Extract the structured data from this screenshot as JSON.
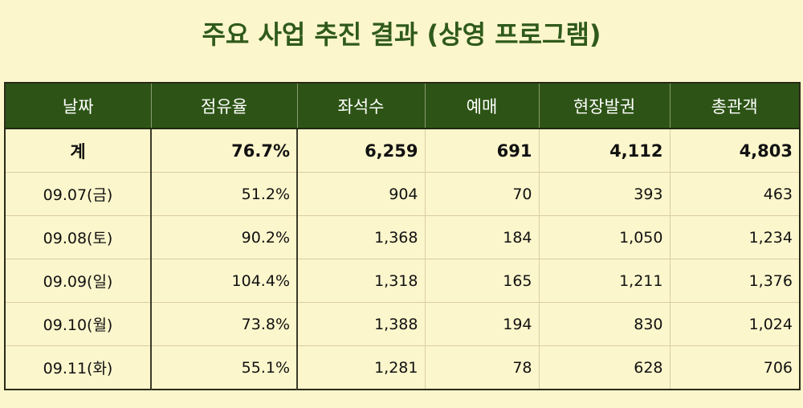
{
  "header": {
    "title": "주요 사업 추진 결과 (상영 프로그램)"
  },
  "table": {
    "columns": [
      "날짜",
      "점유율",
      "좌석수",
      "예매",
      "현장발권",
      "총관객"
    ],
    "rows": [
      [
        "계",
        "76.7%",
        "6,259",
        "691",
        "4,112",
        "4,803"
      ],
      [
        "09.07(금)",
        "51.2%",
        "904",
        "70",
        "393",
        "463"
      ],
      [
        "09.08(토)",
        "90.2%",
        "1,368",
        "184",
        "1,050",
        "1,234"
      ],
      [
        "09.09(일)",
        "104.4%",
        "1,318",
        "165",
        "1,211",
        "1,376"
      ],
      [
        "09.10(월)",
        "73.8%",
        "1,388",
        "194",
        "830",
        "1,024"
      ],
      [
        "09.11(화)",
        "55.1%",
        "1,281",
        "78",
        "628",
        "706"
      ]
    ]
  }
}
